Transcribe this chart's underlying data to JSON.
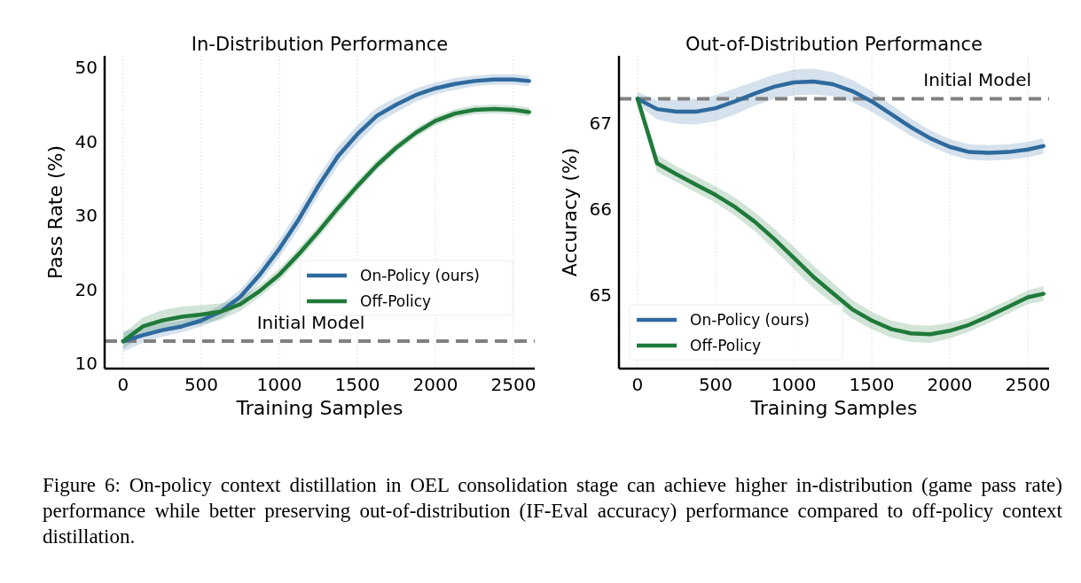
{
  "chart_data": [
    {
      "type": "line",
      "title": "In-Distribution Performance",
      "xlabel": "Training Samples",
      "ylabel": "Pass Rate (%)",
      "x": [
        0,
        125,
        250,
        375,
        500,
        625,
        750,
        875,
        1000,
        1125,
        1250,
        1375,
        1500,
        1625,
        1750,
        1875,
        2000,
        2125,
        2250,
        2375,
        2500,
        2600
      ],
      "series": [
        {
          "name": "On-Policy (ours)",
          "color": "#2e6a9e",
          "values": [
            13,
            13.8,
            14.5,
            15,
            15.8,
            17,
            19,
            22,
            25.5,
            29.5,
            34,
            38,
            41,
            43.5,
            45,
            46.3,
            47.2,
            47.8,
            48.2,
            48.4,
            48.4,
            48.2
          ],
          "lower": [
            11.6,
            12.8,
            13.6,
            14.2,
            15,
            16.1,
            18,
            20.9,
            24.3,
            28.2,
            32.7,
            36.7,
            39.8,
            42.4,
            44,
            45.4,
            46.4,
            47,
            47.5,
            47.7,
            47.7,
            47.5
          ],
          "upper": [
            14.4,
            14.8,
            15.4,
            15.8,
            16.6,
            17.9,
            20,
            23.1,
            26.7,
            30.8,
            35.3,
            39.3,
            42.2,
            44.6,
            46,
            47.2,
            48,
            48.6,
            48.9,
            49.1,
            49.1,
            48.9
          ]
        },
        {
          "name": "Off-Policy",
          "color": "#1f7a3a",
          "values": [
            13,
            15,
            15.8,
            16.3,
            16.6,
            17,
            18,
            19.8,
            22,
            24.8,
            27.8,
            31,
            34,
            36.8,
            39.2,
            41.2,
            42.8,
            43.8,
            44.3,
            44.4,
            44.3,
            44
          ],
          "lower": [
            12,
            13.8,
            14.4,
            14.9,
            15.3,
            15.9,
            17.1,
            19,
            21.2,
            24,
            27,
            30.2,
            33.3,
            36.1,
            38.6,
            40.6,
            42.2,
            43.2,
            43.7,
            43.8,
            43.7,
            43.4
          ],
          "upper": [
            14,
            16.2,
            17.2,
            17.7,
            17.9,
            18.1,
            18.9,
            20.6,
            22.8,
            25.6,
            28.6,
            31.8,
            34.7,
            37.5,
            39.8,
            41.8,
            43.4,
            44.4,
            44.9,
            45,
            44.9,
            44.6
          ]
        }
      ],
      "xlim": [
        -119,
        2636
      ],
      "xticks": [
        0,
        500,
        1000,
        1500,
        2000,
        2500
      ],
      "ylim": [
        9.3,
        51.6
      ],
      "yticks": [
        10,
        20,
        30,
        40,
        50
      ],
      "grid": "x",
      "legend": "bottom right",
      "ref_lines": [
        {
          "axis": "y",
          "value": 13,
          "label": "Initial Model",
          "color": "#808080",
          "line_style": "dashed"
        }
      ],
      "annotations": [
        "Figure 6:  On-policy context distillation in OEL consolidation stage can achieve higher in-distribution (game pass rate) performance while better preserving out-of-distribution (IF-Eval accuracy) performance compared to off-policy context distillation."
      ]
    },
    {
      "type": "line",
      "title": "Out-of-Distribution Performance",
      "xlabel": "Training Samples",
      "ylabel": "Accuracy (%)",
      "x": [
        0,
        125,
        250,
        375,
        500,
        625,
        750,
        875,
        1000,
        1125,
        1250,
        1375,
        1500,
        1625,
        1750,
        1875,
        2000,
        2125,
        2250,
        2375,
        2500,
        2600
      ],
      "series": [
        {
          "name": "On-Policy (ours)",
          "color": "#2e6a9e",
          "values": [
            67.28,
            67.16,
            67.13,
            67.13,
            67.17,
            67.25,
            67.34,
            67.42,
            67.47,
            67.48,
            67.45,
            67.37,
            67.25,
            67.1,
            66.95,
            66.82,
            66.72,
            66.66,
            66.65,
            66.66,
            66.69,
            66.73
          ],
          "lower": [
            67.22,
            67.04,
            66.99,
            66.98,
            67.02,
            67.1,
            67.2,
            67.28,
            67.32,
            67.33,
            67.31,
            67.24,
            67.13,
            66.99,
            66.85,
            66.73,
            66.63,
            66.57,
            66.56,
            66.57,
            66.6,
            66.64
          ],
          "upper": [
            67.36,
            67.26,
            67.27,
            67.28,
            67.32,
            67.4,
            67.48,
            67.56,
            67.62,
            67.63,
            67.59,
            67.5,
            67.37,
            67.21,
            67.05,
            66.91,
            66.81,
            66.75,
            66.74,
            66.75,
            66.78,
            66.82
          ]
        },
        {
          "name": "Off-Policy",
          "color": "#1f7a3a",
          "values": [
            67.28,
            66.53,
            66.4,
            66.28,
            66.16,
            66.02,
            65.85,
            65.65,
            65.43,
            65.21,
            65.02,
            64.83,
            64.7,
            64.6,
            64.55,
            64.54,
            64.58,
            64.65,
            64.75,
            64.86,
            64.97,
            65.01
          ],
          "lower": [
            67.22,
            66.43,
            66.31,
            66.19,
            66.07,
            65.92,
            65.74,
            65.53,
            65.3,
            65.08,
            64.9,
            64.72,
            64.6,
            64.5,
            64.45,
            64.44,
            64.49,
            64.57,
            64.67,
            64.78,
            64.89,
            64.93
          ],
          "upper": [
            67.34,
            66.63,
            66.49,
            66.38,
            66.26,
            66.13,
            65.96,
            65.77,
            65.56,
            65.34,
            65.14,
            64.94,
            64.8,
            64.7,
            64.65,
            64.64,
            64.67,
            64.73,
            64.83,
            64.94,
            65.05,
            65.1
          ]
        }
      ],
      "xlim": [
        -119,
        2636
      ],
      "xticks": [
        0,
        500,
        1000,
        1500,
        2000,
        2500
      ],
      "ylim": [
        64.14,
        67.78
      ],
      "yticks": [
        65,
        66,
        67
      ],
      "grid": "x",
      "legend": "bottom left",
      "ref_lines": [
        {
          "axis": "y",
          "value": 67.28,
          "label": "Initial Model",
          "color": "#808080",
          "line_style": "dashed"
        }
      ]
    }
  ]
}
